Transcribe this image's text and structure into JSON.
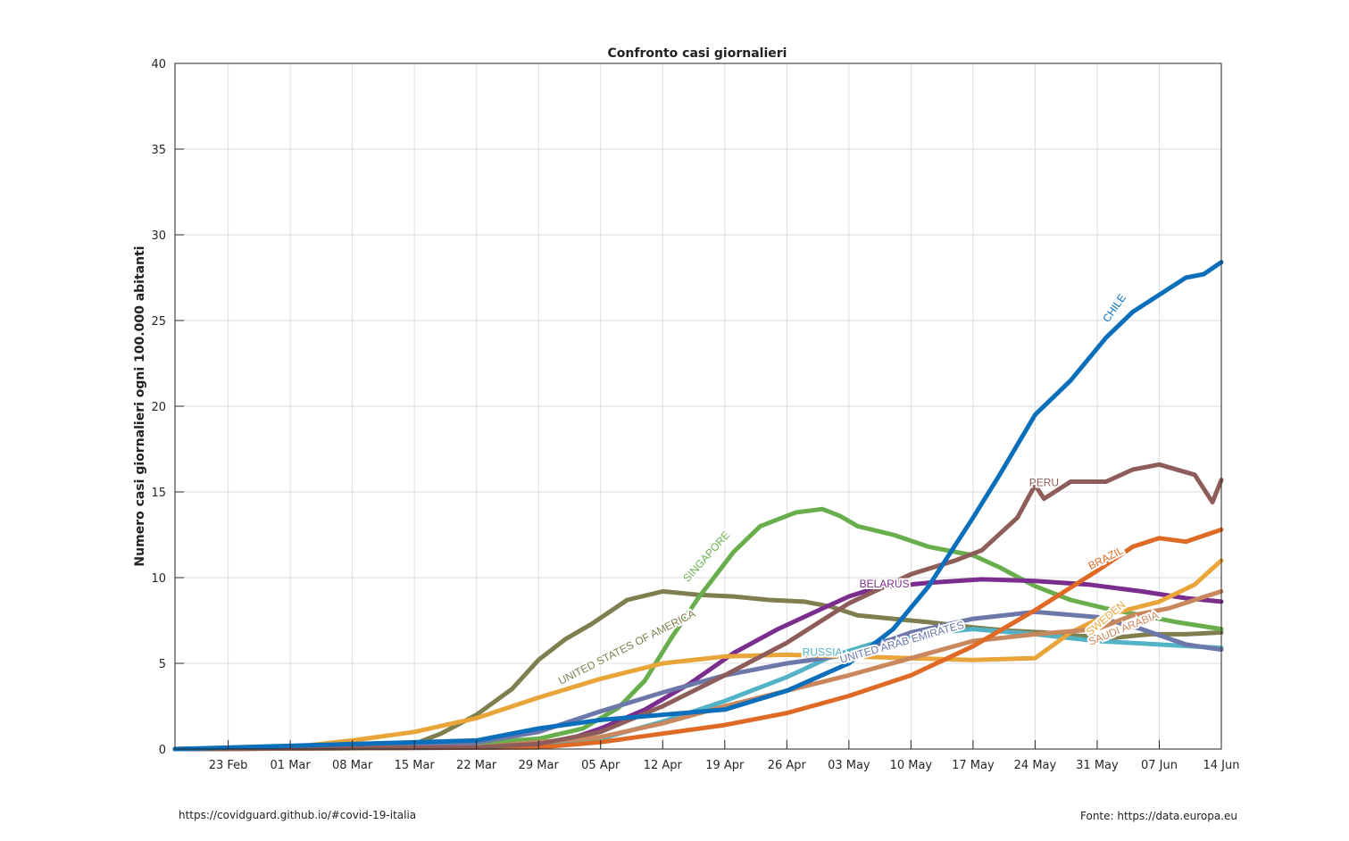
{
  "footer": {
    "left": "https://covidguard.github.io/#covid-19-italia",
    "right": "Fonte: https://data.europa.eu"
  },
  "chart_data": {
    "type": "line",
    "title": "Confronto casi giornalieri",
    "xlabel": "",
    "ylabel": "Numero casi giornalieri ogni 100.000 abitanti",
    "xlim": [
      "2020-02-17",
      "2020-06-14"
    ],
    "ylim": [
      0,
      40
    ],
    "x_ticks": [
      "2020-02-23",
      "2020-03-01",
      "2020-03-08",
      "2020-03-15",
      "2020-03-22",
      "2020-03-29",
      "2020-04-05",
      "2020-04-12",
      "2020-04-19",
      "2020-04-26",
      "2020-05-03",
      "2020-05-10",
      "2020-05-17",
      "2020-05-24",
      "2020-05-31",
      "2020-06-07",
      "2020-06-14"
    ],
    "x_tick_labels": [
      "23 Feb",
      "01 Mar",
      "08 Mar",
      "15 Mar",
      "22 Mar",
      "29 Mar",
      "05 Apr",
      "12 Apr",
      "19 Apr",
      "26 Apr",
      "03 May",
      "10 May",
      "17 May",
      "24 May",
      "31 May",
      "07 Jun",
      "14 Jun"
    ],
    "y_ticks": [
      0,
      5,
      10,
      15,
      20,
      25,
      30,
      35,
      40
    ],
    "grid": true,
    "legend": "none",
    "series": [
      {
        "name": "UNITED STATES OF AMERICA",
        "color": "#7e7e4f",
        "label": {
          "text": "UNITED STATES OF AMERICA",
          "x": "2020-04-08",
          "y": 5.9,
          "angle": -27
        },
        "points": [
          [
            "2020-02-17",
            0
          ],
          [
            "2020-03-08",
            0.05
          ],
          [
            "2020-03-15",
            0.3
          ],
          [
            "2020-03-18",
            0.9
          ],
          [
            "2020-03-22",
            2.0
          ],
          [
            "2020-03-26",
            3.5
          ],
          [
            "2020-03-29",
            5.2
          ],
          [
            "2020-04-01",
            6.4
          ],
          [
            "2020-04-04",
            7.3
          ],
          [
            "2020-04-08",
            8.7
          ],
          [
            "2020-04-12",
            9.2
          ],
          [
            "2020-04-16",
            9.0
          ],
          [
            "2020-04-20",
            8.9
          ],
          [
            "2020-04-24",
            8.7
          ],
          [
            "2020-04-28",
            8.6
          ],
          [
            "2020-05-01",
            8.3
          ],
          [
            "2020-05-04",
            7.8
          ],
          [
            "2020-05-08",
            7.6
          ],
          [
            "2020-05-12",
            7.4
          ],
          [
            "2020-05-17",
            7.1
          ],
          [
            "2020-05-21",
            6.9
          ],
          [
            "2020-05-25",
            6.8
          ],
          [
            "2020-05-29",
            6.6
          ],
          [
            "2020-06-02",
            6.5
          ],
          [
            "2020-06-06",
            6.7
          ],
          [
            "2020-06-10",
            6.7
          ],
          [
            "2020-06-14",
            6.8
          ]
        ]
      },
      {
        "name": "SINGAPORE",
        "color": "#68ae4c",
        "label": {
          "text": "SINGAPORE",
          "x": "2020-04-17",
          "y": 11.2,
          "angle": -48
        },
        "points": [
          [
            "2020-02-17",
            0
          ],
          [
            "2020-03-10",
            0.1
          ],
          [
            "2020-03-20",
            0.3
          ],
          [
            "2020-03-29",
            0.6
          ],
          [
            "2020-04-03",
            1.2
          ],
          [
            "2020-04-07",
            2.4
          ],
          [
            "2020-04-10",
            4.0
          ],
          [
            "2020-04-13",
            6.5
          ],
          [
            "2020-04-16",
            8.8
          ],
          [
            "2020-04-20",
            11.5
          ],
          [
            "2020-04-23",
            13.0
          ],
          [
            "2020-04-27",
            13.8
          ],
          [
            "2020-04-30",
            14.0
          ],
          [
            "2020-05-02",
            13.6
          ],
          [
            "2020-05-04",
            13.0
          ],
          [
            "2020-05-08",
            12.5
          ],
          [
            "2020-05-12",
            11.8
          ],
          [
            "2020-05-17",
            11.3
          ],
          [
            "2020-05-20",
            10.6
          ],
          [
            "2020-05-24",
            9.5
          ],
          [
            "2020-05-28",
            8.7
          ],
          [
            "2020-06-01",
            8.2
          ],
          [
            "2020-06-05",
            7.8
          ],
          [
            "2020-06-09",
            7.4
          ],
          [
            "2020-06-14",
            7.0
          ]
        ]
      },
      {
        "name": "BELARUS",
        "color": "#7b2d8e",
        "label": {
          "text": "BELARUS",
          "x": "2020-05-07",
          "y": 9.6,
          "angle": 0
        },
        "points": [
          [
            "2020-02-17",
            0
          ],
          [
            "2020-03-25",
            0.1
          ],
          [
            "2020-04-01",
            0.5
          ],
          [
            "2020-04-05",
            1.2
          ],
          [
            "2020-04-10",
            2.3
          ],
          [
            "2020-04-15",
            3.8
          ],
          [
            "2020-04-20",
            5.6
          ],
          [
            "2020-04-25",
            7.0
          ],
          [
            "2020-04-30",
            8.2
          ],
          [
            "2020-05-03",
            8.9
          ],
          [
            "2020-05-06",
            9.4
          ],
          [
            "2020-05-12",
            9.7
          ],
          [
            "2020-05-18",
            9.9
          ],
          [
            "2020-05-24",
            9.8
          ],
          [
            "2020-05-30",
            9.6
          ],
          [
            "2020-06-05",
            9.2
          ],
          [
            "2020-06-10",
            8.8
          ],
          [
            "2020-06-14",
            8.6
          ]
        ]
      },
      {
        "name": "RUSSIA",
        "color": "#52b3c7",
        "label": {
          "text": "RUSSIA",
          "x": "2020-04-30",
          "y": 5.6,
          "angle": 0
        },
        "points": [
          [
            "2020-02-17",
            0
          ],
          [
            "2020-03-29",
            0.1
          ],
          [
            "2020-04-05",
            0.6
          ],
          [
            "2020-04-12",
            1.6
          ],
          [
            "2020-04-19",
            2.8
          ],
          [
            "2020-04-26",
            4.2
          ],
          [
            "2020-05-01",
            5.4
          ],
          [
            "2020-05-06",
            6.2
          ],
          [
            "2020-05-11",
            6.7
          ],
          [
            "2020-05-17",
            7.0
          ],
          [
            "2020-05-24",
            6.7
          ],
          [
            "2020-05-31",
            6.3
          ],
          [
            "2020-06-07",
            6.1
          ],
          [
            "2020-06-14",
            5.9
          ]
        ]
      },
      {
        "name": "UNITED ARAB EMIRATES",
        "color": "#6d78aa",
        "label": {
          "text": "UNITED ARAB EMIRATES",
          "x": "2020-05-09",
          "y": 6.2,
          "angle": -16
        },
        "points": [
          [
            "2020-02-17",
            0
          ],
          [
            "2020-03-20",
            0.2
          ],
          [
            "2020-03-29",
            1.0
          ],
          [
            "2020-04-05",
            2.2
          ],
          [
            "2020-04-12",
            3.3
          ],
          [
            "2020-04-19",
            4.3
          ],
          [
            "2020-04-26",
            5.0
          ],
          [
            "2020-05-03",
            5.5
          ],
          [
            "2020-05-10",
            6.8
          ],
          [
            "2020-05-17",
            7.6
          ],
          [
            "2020-05-24",
            8.0
          ],
          [
            "2020-05-31",
            7.7
          ],
          [
            "2020-06-05",
            7.0
          ],
          [
            "2020-06-10",
            6.1
          ],
          [
            "2020-06-14",
            5.8
          ]
        ]
      },
      {
        "name": "SWEDEN",
        "color": "#e9a43a",
        "label": {
          "text": "SWEDEN",
          "x": "2020-06-01",
          "y": 7.6,
          "angle": -40
        },
        "points": [
          [
            "2020-02-17",
            0
          ],
          [
            "2020-03-01",
            0.1
          ],
          [
            "2020-03-08",
            0.5
          ],
          [
            "2020-03-15",
            1.0
          ],
          [
            "2020-03-22",
            1.8
          ],
          [
            "2020-03-29",
            3.0
          ],
          [
            "2020-04-05",
            4.1
          ],
          [
            "2020-04-12",
            5.0
          ],
          [
            "2020-04-19",
            5.4
          ],
          [
            "2020-04-26",
            5.5
          ],
          [
            "2020-05-03",
            5.4
          ],
          [
            "2020-05-10",
            5.3
          ],
          [
            "2020-05-17",
            5.2
          ],
          [
            "2020-05-24",
            5.3
          ],
          [
            "2020-05-28",
            6.8
          ],
          [
            "2020-06-01",
            7.8
          ],
          [
            "2020-06-07",
            8.6
          ],
          [
            "2020-06-11",
            9.6
          ],
          [
            "2020-06-14",
            11.0
          ]
        ]
      },
      {
        "name": "SAUDI ARABIA",
        "color": "#c9875d",
        "label": {
          "text": "SAUDI ARABIA",
          "x": "2020-06-03",
          "y": 7.0,
          "angle": -22
        },
        "points": [
          [
            "2020-02-17",
            0
          ],
          [
            "2020-03-22",
            0.1
          ],
          [
            "2020-04-05",
            0.7
          ],
          [
            "2020-04-12",
            1.5
          ],
          [
            "2020-04-19",
            2.5
          ],
          [
            "2020-04-26",
            3.4
          ],
          [
            "2020-05-03",
            4.3
          ],
          [
            "2020-05-10",
            5.3
          ],
          [
            "2020-05-17",
            6.3
          ],
          [
            "2020-05-24",
            6.7
          ],
          [
            "2020-05-31",
            7.0
          ],
          [
            "2020-06-04",
            7.8
          ],
          [
            "2020-06-08",
            8.2
          ],
          [
            "2020-06-14",
            9.2
          ]
        ]
      },
      {
        "name": "BRAZIL",
        "color": "#df6a25",
        "label": {
          "text": "BRAZIL",
          "x": "2020-06-01",
          "y": 11.1,
          "angle": -27
        },
        "points": [
          [
            "2020-02-17",
            0
          ],
          [
            "2020-03-29",
            0.1
          ],
          [
            "2020-04-05",
            0.4
          ],
          [
            "2020-04-12",
            0.9
          ],
          [
            "2020-04-19",
            1.4
          ],
          [
            "2020-04-26",
            2.1
          ],
          [
            "2020-05-03",
            3.1
          ],
          [
            "2020-05-10",
            4.3
          ],
          [
            "2020-05-17",
            6.0
          ],
          [
            "2020-05-24",
            8.1
          ],
          [
            "2020-05-31",
            10.4
          ],
          [
            "2020-06-04",
            11.8
          ],
          [
            "2020-06-07",
            12.3
          ],
          [
            "2020-06-10",
            12.1
          ],
          [
            "2020-06-14",
            12.8
          ]
        ]
      },
      {
        "name": "PERU",
        "color": "#8e5d59",
        "label": {
          "text": "PERU",
          "x": "2020-05-25",
          "y": 15.5,
          "angle": 0
        },
        "points": [
          [
            "2020-02-17",
            0
          ],
          [
            "2020-03-22",
            0.1
          ],
          [
            "2020-03-29",
            0.3
          ],
          [
            "2020-04-05",
            1.0
          ],
          [
            "2020-04-12",
            2.5
          ],
          [
            "2020-04-19",
            4.3
          ],
          [
            "2020-04-26",
            6.2
          ],
          [
            "2020-05-03",
            8.5
          ],
          [
            "2020-05-10",
            10.2
          ],
          [
            "2020-05-15",
            11.0
          ],
          [
            "2020-05-18",
            11.6
          ],
          [
            "2020-05-22",
            13.5
          ],
          [
            "2020-05-24",
            15.4
          ],
          [
            "2020-05-25",
            14.6
          ],
          [
            "2020-05-28",
            15.6
          ],
          [
            "2020-06-01",
            15.6
          ],
          [
            "2020-06-04",
            16.3
          ],
          [
            "2020-06-07",
            16.6
          ],
          [
            "2020-06-11",
            16.0
          ],
          [
            "2020-06-13",
            14.4
          ],
          [
            "2020-06-14",
            15.7
          ]
        ]
      },
      {
        "name": "CHILE",
        "color": "#0b6fbb",
        "label": {
          "text": "CHILE",
          "x": "2020-06-02",
          "y": 25.7,
          "angle": -55
        },
        "points": [
          [
            "2020-02-17",
            0
          ],
          [
            "2020-03-22",
            0.5
          ],
          [
            "2020-03-29",
            1.2
          ],
          [
            "2020-04-05",
            1.7
          ],
          [
            "2020-04-12",
            2.0
          ],
          [
            "2020-04-19",
            2.3
          ],
          [
            "2020-04-26",
            3.4
          ],
          [
            "2020-05-03",
            5.0
          ],
          [
            "2020-05-08",
            7.0
          ],
          [
            "2020-05-12",
            9.5
          ],
          [
            "2020-05-17",
            13.5
          ],
          [
            "2020-05-20",
            16.0
          ],
          [
            "2020-05-24",
            19.5
          ],
          [
            "2020-05-28",
            21.5
          ],
          [
            "2020-06-01",
            24.0
          ],
          [
            "2020-06-04",
            25.5
          ],
          [
            "2020-06-07",
            26.5
          ],
          [
            "2020-06-10",
            27.5
          ],
          [
            "2020-06-12",
            27.7
          ],
          [
            "2020-06-14",
            28.4
          ]
        ]
      }
    ]
  }
}
